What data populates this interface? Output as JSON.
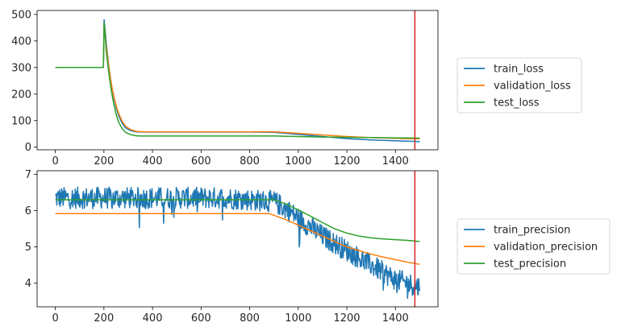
{
  "chart_data": [
    {
      "type": "line",
      "xlim": [
        -75,
        1575
      ],
      "ylim": [
        -10,
        515
      ],
      "xticks": [
        0,
        200,
        400,
        600,
        800,
        1000,
        1200,
        1400
      ],
      "yticks": [
        0,
        100,
        200,
        300,
        400,
        500
      ],
      "vline": {
        "x": 1480,
        "color": "#d62728"
      },
      "legend": "outside-right",
      "series": [
        {
          "name": "train_loss",
          "color": "#1f77b4",
          "x": [
            0,
            198,
            200,
            210,
            220,
            230,
            240,
            250,
            260,
            275,
            290,
            310,
            330,
            350,
            400,
            600,
            800,
            900,
            1000,
            1100,
            1200,
            1300,
            1400,
            1500
          ],
          "y": [
            300,
            300,
            490,
            390,
            305,
            240,
            190,
            150,
            120,
            90,
            72,
            62,
            58,
            57,
            57,
            57,
            57,
            56,
            48,
            40,
            32,
            27,
            24,
            21
          ]
        },
        {
          "name": "validation_loss",
          "color": "#ff7f0e",
          "x": [
            0,
            198,
            200,
            210,
            220,
            230,
            240,
            250,
            260,
            275,
            290,
            310,
            330,
            350,
            400,
            600,
            800,
            900,
            1000,
            1100,
            1200,
            1300,
            1400,
            1500
          ],
          "y": [
            300,
            300,
            470,
            380,
            300,
            240,
            195,
            158,
            128,
            98,
            78,
            66,
            60,
            58,
            58,
            58,
            58,
            58,
            52,
            46,
            40,
            36,
            33,
            31
          ]
        },
        {
          "name": "test_loss",
          "color": "#2ca02c",
          "x": [
            0,
            198,
            200,
            210,
            220,
            230,
            240,
            250,
            260,
            275,
            290,
            310,
            330,
            350,
            400,
            600,
            800,
            900,
            1000,
            1100,
            1200,
            1300,
            1400,
            1500
          ],
          "y": [
            300,
            300,
            480,
            360,
            280,
            215,
            165,
            125,
            95,
            70,
            55,
            47,
            43,
            42,
            42,
            42,
            42,
            42,
            40,
            38,
            37,
            36,
            35,
            34
          ]
        }
      ]
    },
    {
      "type": "line",
      "xlim": [
        -75,
        1575
      ],
      "ylim": [
        3.35,
        7.1
      ],
      "xticks": [
        0,
        200,
        400,
        600,
        800,
        1000,
        1200,
        1400
      ],
      "yticks": [
        4,
        5,
        6,
        7
      ],
      "vline": {
        "x": 1480,
        "color": "#d62728"
      },
      "legend": "outside-right",
      "series": [
        {
          "name": "train_precision",
          "color": "#1f77b4",
          "x": [
            0,
            100,
            200,
            300,
            400,
            500,
            600,
            700,
            800,
            900,
            950,
            1000,
            1050,
            1100,
            1150,
            1200,
            1250,
            1300,
            1350,
            1400,
            1450,
            1500
          ],
          "y": [
            6.35,
            6.35,
            6.35,
            6.35,
            6.35,
            6.35,
            6.35,
            6.35,
            6.3,
            6.25,
            6.05,
            5.8,
            5.55,
            5.3,
            5.1,
            4.9,
            4.7,
            4.5,
            4.3,
            4.1,
            4.0,
            3.9
          ],
          "noise": 0.3
        },
        {
          "name": "validation_precision",
          "color": "#ff7f0e",
          "x": [
            0,
            200,
            400,
            600,
            800,
            880,
            950,
            1000,
            1050,
            1100,
            1150,
            1200,
            1250,
            1300,
            1350,
            1400,
            1450,
            1500
          ],
          "y": [
            5.92,
            5.92,
            5.92,
            5.92,
            5.92,
            5.92,
            5.75,
            5.6,
            5.45,
            5.3,
            5.15,
            5.0,
            4.9,
            4.8,
            4.72,
            4.65,
            4.58,
            4.52
          ]
        },
        {
          "name": "test_precision",
          "color": "#2ca02c",
          "x": [
            0,
            200,
            400,
            600,
            800,
            900,
            950,
            1000,
            1050,
            1100,
            1150,
            1200,
            1250,
            1300,
            1350,
            1400,
            1450,
            1500
          ],
          "y": [
            6.3,
            6.3,
            6.3,
            6.3,
            6.3,
            6.3,
            6.18,
            6.02,
            5.85,
            5.67,
            5.5,
            5.38,
            5.3,
            5.25,
            5.22,
            5.2,
            5.18,
            5.15
          ]
        }
      ]
    }
  ]
}
